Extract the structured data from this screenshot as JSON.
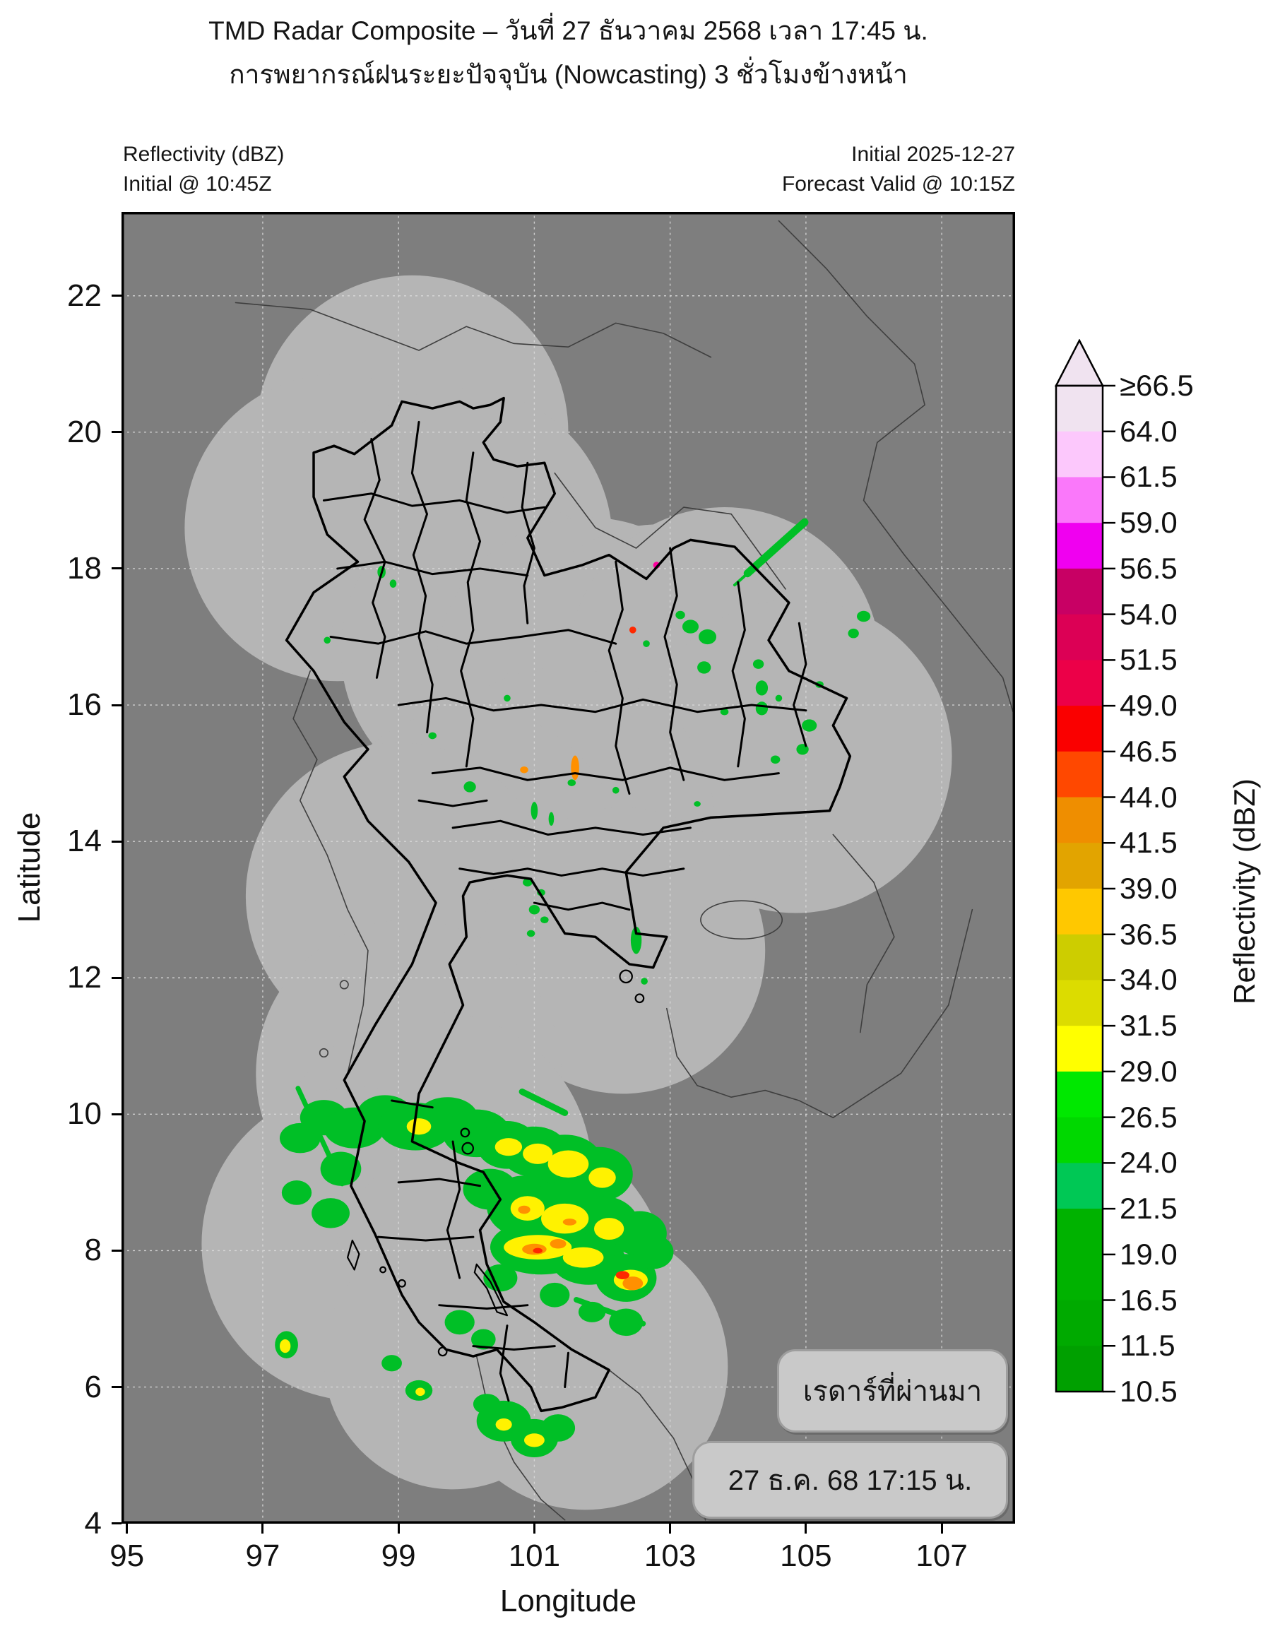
{
  "title": {
    "line1": "TMD Radar Composite – วันที่ 27 ธันวาคม 2568 เวลา 17:45 น.",
    "line2": "การพยากรณ์ฝนระยะปัจจุบัน (Nowcasting) 3 ชั่วโมงข้างหน้า"
  },
  "subheader": {
    "left_line1": "Reflectivity (dBZ)",
    "left_line2": "Initial @ 10:45Z",
    "right_line1": "Initial 2025-12-27",
    "right_line2": "Forecast Valid @ 10:15Z"
  },
  "axes": {
    "x": {
      "label": "Longitude",
      "ticks": [
        95,
        97,
        99,
        101,
        103,
        105,
        107
      ],
      "range": [
        94.92,
        108.08
      ]
    },
    "y": {
      "label": "Latitude",
      "ticks": [
        4,
        6,
        8,
        10,
        12,
        14,
        16,
        18,
        20,
        22
      ],
      "range": [
        4,
        23.23
      ]
    }
  },
  "colorbar": {
    "label": "Reflectivity (dBZ)",
    "tick_labels": [
      "≥66.5",
      "64.0",
      "61.5",
      "59.0",
      "56.5",
      "54.0",
      "51.5",
      "49.0",
      "46.5",
      "44.0",
      "41.5",
      "39.0",
      "36.5",
      "34.0",
      "31.5",
      "29.0",
      "26.5",
      "24.0",
      "21.5",
      "19.0",
      "16.5",
      "11.5",
      "10.5"
    ],
    "segment_colors_top_to_bottom": [
      "#f0e3f0",
      "#fcc8fc",
      "#fa78fa",
      "#f000f0",
      "#c80064",
      "#dc0055",
      "#ec0048",
      "#fa0000",
      "#ff4800",
      "#ef8e00",
      "#e2a400",
      "#ffc800",
      "#cdcd00",
      "#dcdc00",
      "#ffff00",
      "#00e800",
      "#00d800",
      "#00c855",
      "#00b200",
      "#00b200",
      "#00aa00",
      "#00a000"
    ]
  },
  "overlay": {
    "box1_text": "เรดาร์ที่ผ่านมา",
    "box2_text": "27 ธ.ค. 68 17:15 น."
  },
  "map": {
    "colors": {
      "background": "#7e7e7e",
      "coverage": "#b5b5b5",
      "gridline": "#dcdcdc",
      "border": "#000000",
      "neighbor_border": "#3f3f3f",
      "echo_g": "#00bf26",
      "echo_y": "#fff200",
      "echo_o": "#ff9000",
      "echo_r": "#ff2800",
      "echo_p": "#ff00a0"
    },
    "radar_coverage_circles": [
      [
        99.2,
        20.0,
        2.3
      ],
      [
        98.1,
        18.6,
        2.25
      ],
      [
        99.9,
        18.4,
        2.25
      ],
      [
        100.4,
        16.8,
        2.25
      ],
      [
        101.8,
        16.5,
        2.25
      ],
      [
        102.85,
        16.4,
        2.25
      ],
      [
        103.8,
        16.6,
        2.3
      ],
      [
        104.85,
        15.25,
        2.3
      ],
      [
        101.4,
        14.3,
        2.25
      ],
      [
        100.05,
        13.7,
        2.25
      ],
      [
        99.0,
        13.2,
        2.25
      ],
      [
        102.3,
        12.4,
        2.1
      ],
      [
        99.15,
        10.6,
        2.25
      ],
      [
        99.5,
        9.15,
        2.35
      ],
      [
        98.4,
        8.1,
        2.3
      ],
      [
        100.5,
        7.4,
        2.5
      ],
      [
        101.75,
        6.3,
        2.1
      ],
      [
        99.8,
        6.4,
        1.9
      ]
    ],
    "echoes": [
      [
        97.55,
        9.65,
        0.3,
        0.22,
        "g"
      ],
      [
        97.9,
        9.95,
        0.35,
        0.26,
        "g"
      ],
      [
        98.35,
        9.8,
        0.45,
        0.3,
        "g"
      ],
      [
        98.8,
        9.98,
        0.42,
        0.3,
        "g"
      ],
      [
        99.25,
        9.82,
        0.55,
        0.35,
        "g"
      ],
      [
        99.72,
        9.95,
        0.45,
        0.3,
        "g"
      ],
      [
        100.15,
        9.72,
        0.5,
        0.35,
        "g"
      ],
      [
        100.6,
        9.55,
        0.45,
        0.35,
        "g"
      ],
      [
        101.0,
        9.45,
        0.5,
        0.37,
        "g"
      ],
      [
        101.45,
        9.3,
        0.55,
        0.4,
        "g"
      ],
      [
        101.95,
        9.12,
        0.5,
        0.4,
        "g"
      ],
      [
        98.15,
        9.2,
        0.3,
        0.25,
        "g"
      ],
      [
        97.5,
        8.85,
        0.22,
        0.18,
        "g"
      ],
      [
        98.0,
        8.55,
        0.28,
        0.22,
        "g"
      ],
      [
        100.35,
        8.9,
        0.4,
        0.3,
        "g"
      ],
      [
        100.85,
        8.65,
        0.55,
        0.45,
        "g"
      ],
      [
        101.4,
        8.5,
        0.65,
        0.5,
        "g"
      ],
      [
        102.0,
        8.35,
        0.55,
        0.45,
        "g"
      ],
      [
        102.55,
        8.25,
        0.4,
        0.33,
        "g"
      ],
      [
        101.1,
        8.05,
        0.75,
        0.4,
        "g"
      ],
      [
        101.8,
        7.85,
        0.55,
        0.35,
        "g"
      ],
      [
        102.35,
        7.6,
        0.45,
        0.35,
        "g"
      ],
      [
        102.75,
        7.98,
        0.3,
        0.25,
        "g"
      ],
      [
        100.5,
        7.6,
        0.25,
        0.2,
        "g"
      ],
      [
        101.3,
        7.35,
        0.22,
        0.18,
        "g"
      ],
      [
        101.85,
        7.1,
        0.2,
        0.15,
        "g"
      ],
      [
        102.35,
        6.95,
        0.25,
        0.2,
        "g"
      ],
      [
        99.9,
        6.95,
        0.22,
        0.18,
        "g"
      ],
      [
        100.25,
        6.7,
        0.18,
        0.15,
        "g"
      ],
      [
        98.9,
        6.35,
        0.15,
        0.12,
        "g"
      ],
      [
        99.3,
        5.95,
        0.2,
        0.15,
        "g"
      ],
      [
        100.55,
        5.5,
        0.4,
        0.3,
        "g"
      ],
      [
        101.0,
        5.25,
        0.35,
        0.28,
        "g"
      ],
      [
        101.35,
        5.4,
        0.25,
        0.2,
        "g"
      ],
      [
        100.3,
        5.75,
        0.2,
        0.15,
        "g"
      ],
      [
        97.35,
        6.62,
        0.17,
        0.2,
        "g"
      ],
      [
        99.3,
        9.82,
        0.18,
        0.12,
        "y"
      ],
      [
        100.62,
        9.52,
        0.2,
        0.13,
        "y"
      ],
      [
        101.05,
        9.42,
        0.22,
        0.15,
        "y"
      ],
      [
        101.5,
        9.27,
        0.3,
        0.2,
        "y"
      ],
      [
        102.0,
        9.07,
        0.2,
        0.15,
        "y"
      ],
      [
        100.9,
        8.62,
        0.25,
        0.18,
        "y"
      ],
      [
        101.45,
        8.47,
        0.35,
        0.22,
        "y"
      ],
      [
        102.1,
        8.32,
        0.22,
        0.16,
        "y"
      ],
      [
        101.05,
        8.05,
        0.5,
        0.18,
        "y"
      ],
      [
        101.72,
        7.9,
        0.3,
        0.15,
        "y"
      ],
      [
        102.42,
        7.57,
        0.25,
        0.15,
        "y"
      ],
      [
        101.0,
        5.22,
        0.15,
        0.1,
        "y"
      ],
      [
        97.33,
        6.6,
        0.08,
        0.1,
        "y"
      ],
      [
        99.32,
        5.93,
        0.07,
        0.06,
        "y"
      ],
      [
        100.55,
        5.45,
        0.12,
        0.09,
        "y"
      ],
      [
        101.0,
        8.02,
        0.18,
        0.08,
        "o"
      ],
      [
        101.35,
        8.1,
        0.12,
        0.07,
        "o"
      ],
      [
        100.85,
        8.6,
        0.09,
        0.06,
        "o"
      ],
      [
        102.45,
        7.52,
        0.15,
        0.1,
        "o"
      ],
      [
        101.52,
        8.42,
        0.1,
        0.05,
        "o"
      ],
      [
        102.3,
        7.64,
        0.1,
        0.06,
        "r"
      ],
      [
        101.05,
        8.0,
        0.07,
        0.04,
        "r"
      ],
      [
        103.3,
        17.15,
        0.12,
        0.1,
        "g"
      ],
      [
        103.55,
        17.0,
        0.13,
        0.11,
        "g"
      ],
      [
        103.5,
        16.55,
        0.1,
        0.09,
        "g"
      ],
      [
        104.3,
        16.6,
        0.08,
        0.07,
        "g"
      ],
      [
        104.35,
        16.25,
        0.09,
        0.11,
        "g"
      ],
      [
        104.35,
        15.95,
        0.09,
        0.1,
        "g"
      ],
      [
        103.8,
        15.9,
        0.06,
        0.05,
        "g"
      ],
      [
        105.05,
        15.7,
        0.11,
        0.09,
        "g"
      ],
      [
        104.95,
        15.35,
        0.09,
        0.08,
        "g"
      ],
      [
        104.55,
        15.2,
        0.07,
        0.06,
        "g"
      ],
      [
        105.85,
        17.3,
        0.1,
        0.08,
        "g"
      ],
      [
        105.7,
        17.05,
        0.08,
        0.07,
        "g"
      ],
      [
        103.15,
        17.32,
        0.07,
        0.06,
        "g"
      ],
      [
        102.65,
        16.9,
        0.05,
        0.05,
        "g"
      ],
      [
        104.6,
        16.1,
        0.05,
        0.05,
        "g"
      ],
      [
        105.2,
        16.3,
        0.06,
        0.05,
        "g"
      ],
      [
        98.75,
        17.95,
        0.06,
        0.09,
        "g"
      ],
      [
        98.92,
        17.78,
        0.05,
        0.06,
        "g"
      ],
      [
        97.95,
        16.95,
        0.05,
        0.05,
        "g"
      ],
      [
        99.5,
        15.55,
        0.06,
        0.05,
        "g"
      ],
      [
        100.05,
        14.8,
        0.09,
        0.08,
        "g"
      ],
      [
        101.0,
        14.45,
        0.05,
        0.13,
        "g"
      ],
      [
        101.25,
        14.33,
        0.04,
        0.1,
        "g"
      ],
      [
        100.9,
        13.4,
        0.07,
        0.06,
        "g"
      ],
      [
        101.1,
        13.25,
        0.06,
        0.05,
        "g"
      ],
      [
        101.0,
        13.0,
        0.08,
        0.07,
        "g"
      ],
      [
        101.15,
        12.85,
        0.06,
        0.05,
        "g"
      ],
      [
        100.95,
        12.65,
        0.06,
        0.05,
        "g"
      ],
      [
        102.5,
        12.55,
        0.08,
        0.2,
        "g"
      ],
      [
        102.62,
        11.95,
        0.05,
        0.05,
        "g"
      ],
      [
        101.6,
        15.08,
        0.06,
        0.18,
        "o"
      ],
      [
        101.55,
        14.86,
        0.06,
        0.05,
        "g"
      ],
      [
        102.45,
        17.1,
        0.05,
        0.05,
        "r"
      ],
      [
        102.8,
        18.05,
        0.05,
        0.05,
        "p"
      ],
      [
        100.85,
        15.05,
        0.06,
        0.05,
        "o"
      ],
      [
        100.6,
        16.1,
        0.05,
        0.05,
        "g"
      ],
      [
        102.2,
        14.75,
        0.05,
        0.05,
        "g"
      ],
      [
        103.4,
        14.55,
        0.05,
        0.04,
        "g"
      ]
    ],
    "beams": [
      [
        97.52,
        10.38,
        98.17,
        8.98,
        7,
        "g"
      ],
      [
        100.82,
        10.33,
        101.45,
        10.02,
        9,
        "g"
      ],
      [
        101.62,
        7.28,
        102.6,
        6.93,
        8,
        "g"
      ],
      [
        104.14,
        17.93,
        104.98,
        18.68,
        11,
        "g"
      ],
      [
        103.95,
        17.76,
        104.14,
        17.93,
        4,
        "g"
      ]
    ]
  }
}
